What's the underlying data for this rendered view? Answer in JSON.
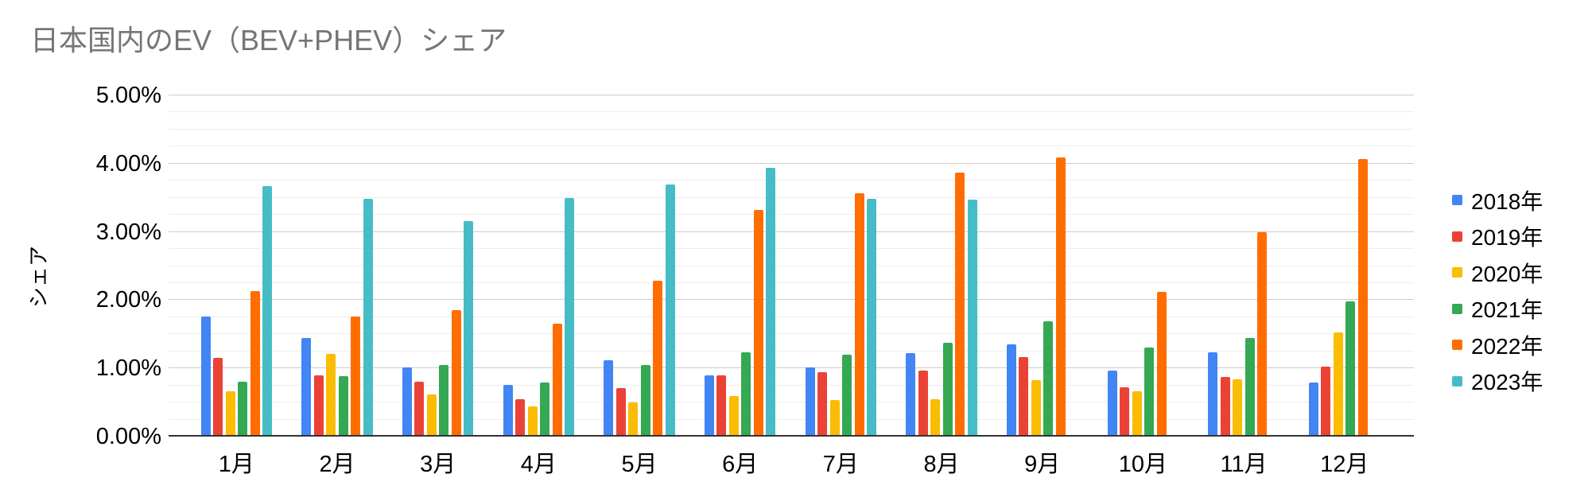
{
  "chart_data": {
    "type": "bar",
    "title": "日本国内のEV（BEV+PHEV）シェア",
    "xlabel": "",
    "ylabel": "シェア",
    "ylim": [
      0,
      5
    ],
    "y_ticks": [
      {
        "value": 0,
        "label": "0.00%"
      },
      {
        "value": 1,
        "label": "1.00%"
      },
      {
        "value": 2,
        "label": "2.00%"
      },
      {
        "value": 3,
        "label": "3.00%"
      },
      {
        "value": 4,
        "label": "4.00%"
      },
      {
        "value": 5,
        "label": "5.00%"
      }
    ],
    "y_minor_step": 0.25,
    "grid": "major+minor",
    "legend_position": "right",
    "categories": [
      "1月",
      "2月",
      "3月",
      "4月",
      "5月",
      "6月",
      "7月",
      "8月",
      "9月",
      "10月",
      "11月",
      "12月"
    ],
    "series": [
      {
        "name": "2018年",
        "color": "#4285F4",
        "values": [
          1.76,
          1.44,
          1.01,
          0.76,
          1.12,
          0.9,
          1.01,
          1.22,
          1.35,
          0.97,
          1.23,
          0.79
        ]
      },
      {
        "name": "2019年",
        "color": "#EA4335",
        "values": [
          1.15,
          0.9,
          0.8,
          0.55,
          0.71,
          0.9,
          0.94,
          0.97,
          1.16,
          0.72,
          0.88,
          1.02
        ]
      },
      {
        "name": "2020年",
        "color": "#FBBC04",
        "values": [
          0.66,
          1.21,
          0.62,
          0.44,
          0.5,
          0.59,
          0.54,
          0.55,
          0.83,
          0.67,
          0.84,
          1.53
        ]
      },
      {
        "name": "2021年",
        "color": "#34A853",
        "values": [
          0.81,
          0.89,
          1.05,
          0.79,
          1.05,
          1.23,
          1.2,
          1.37,
          1.69,
          1.31,
          1.44,
          1.98
        ]
      },
      {
        "name": "2022年",
        "color": "#FF6D01",
        "values": [
          2.13,
          1.76,
          1.85,
          1.65,
          2.28,
          3.32,
          3.57,
          3.87,
          4.09,
          2.12,
          3.0,
          4.07
        ]
      },
      {
        "name": "2023年",
        "color": "#46BDC6",
        "values": [
          3.67,
          3.48,
          3.16,
          3.5,
          3.7,
          3.94,
          3.49,
          3.47,
          null,
          null,
          null,
          null
        ]
      }
    ]
  }
}
